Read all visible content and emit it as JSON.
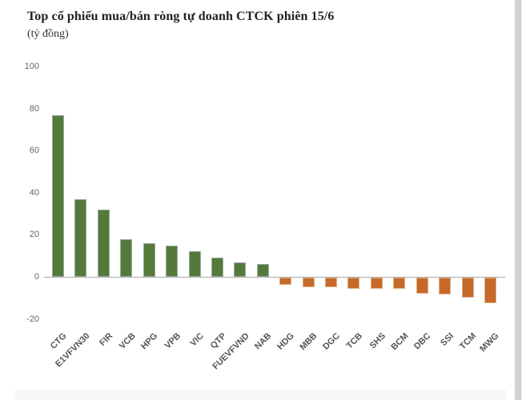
{
  "chart_data": {
    "type": "bar",
    "title": "Top cổ phiếu mua/bán ròng tự doanh CTCK phiên 15/6",
    "subtitle": "(tỷ đồng)",
    "unit": "tỷ đồng",
    "categories": [
      "CTG",
      "E1VFVN30",
      "FIR",
      "VCB",
      "HPG",
      "VPB",
      "VIC",
      "QTP",
      "FUEVFVND",
      "NAB",
      "HDG",
      "MBB",
      "DGC",
      "TCB",
      "SHS",
      "BCM",
      "DBC",
      "SSI",
      "TCM",
      "MWG"
    ],
    "values": [
      77,
      37,
      32,
      18,
      16,
      15,
      12,
      9,
      7,
      6,
      -3.5,
      -4.5,
      -4.5,
      -5.5,
      -5.5,
      -5.5,
      -7.5,
      -8,
      -9.5,
      -12
    ],
    "yticks": [
      100,
      80,
      60,
      40,
      20,
      0,
      -20
    ],
    "ylim": [
      -20,
      100
    ],
    "grid": false,
    "legend": "none",
    "positive_color": "#55793B",
    "negative_color": "#C6692A"
  }
}
